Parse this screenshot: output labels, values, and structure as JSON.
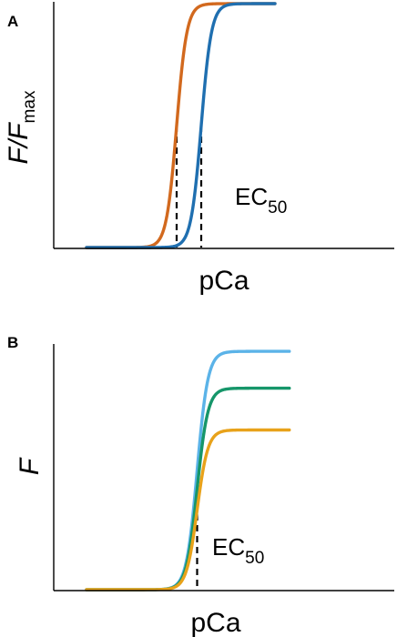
{
  "chart_data": [
    {
      "panel": "A",
      "type": "line",
      "xlabel": "pCa",
      "ylabel": {
        "main": "F/F",
        "sub": "max"
      },
      "annotation": {
        "main": "EC",
        "sub": "50"
      },
      "grid": false,
      "xlim": [
        0,
        1
      ],
      "ylim": [
        0,
        1
      ],
      "series": [
        {
          "color": "#D2691E",
          "ec50": 0.44,
          "steepness": 40,
          "max": 1.0,
          "xmax": 0.92
        },
        {
          "color": "#1F6FB0",
          "ec50": 0.56,
          "steepness": 40,
          "max": 1.0,
          "xmax": 0.92
        }
      ],
      "ec50_markers": [
        0.44,
        0.56
      ]
    },
    {
      "panel": "B",
      "type": "line",
      "xlabel": "pCa",
      "ylabel": {
        "main": "F",
        "sub": ""
      },
      "annotation": {
        "main": "EC",
        "sub": "50"
      },
      "grid": false,
      "xlim": [
        0,
        1
      ],
      "ylim": [
        0,
        1
      ],
      "series": [
        {
          "color": "#5BB3E8",
          "ec50": 0.54,
          "steepness": 38,
          "max": 0.97,
          "xmax": 0.99
        },
        {
          "color": "#16966A",
          "ec50": 0.54,
          "steepness": 38,
          "max": 0.82,
          "xmax": 0.99
        },
        {
          "color": "#E8A21A",
          "ec50": 0.54,
          "steepness": 38,
          "max": 0.65,
          "xmax": 0.99
        }
      ],
      "ec50_markers": [
        0.54
      ]
    }
  ]
}
